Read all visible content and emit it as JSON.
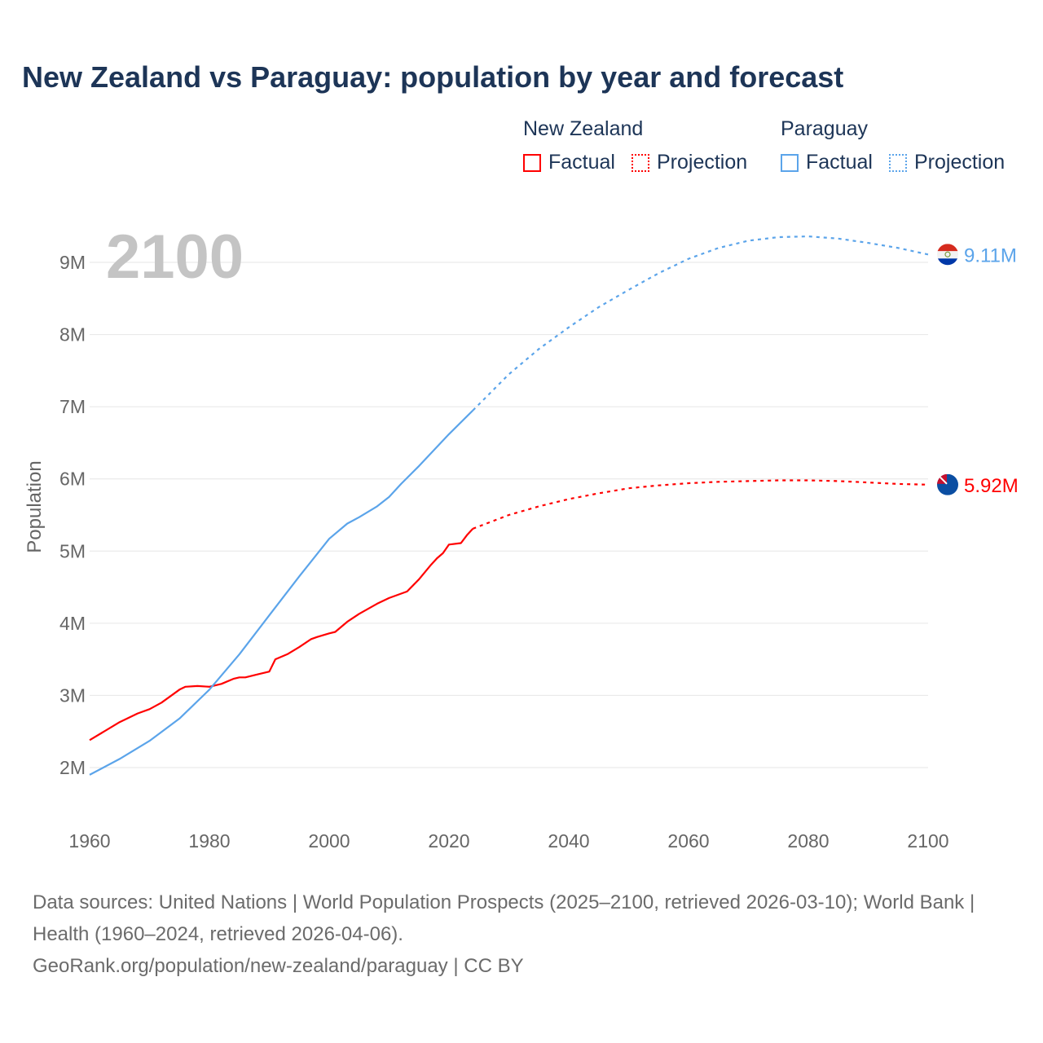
{
  "title": "New Zealand vs Paraguay: population by year and forecast",
  "legend": {
    "groups": [
      {
        "name": "New Zealand",
        "factual": "Factual",
        "projection": "Projection",
        "color": "#ff0000"
      },
      {
        "name": "Paraguay",
        "factual": "Factual",
        "projection": "Projection",
        "color": "#5ba4ea"
      }
    ]
  },
  "year_overlay": "2100",
  "footer": {
    "sources": "Data sources: United Nations | World Population Prospects (2025–2100, retrieved 2026-03-10); World Bank | Health (1960–2024, retrieved 2026-04-06).",
    "link": "GeoRank.org/population/new-zealand/paraguay | CC BY"
  },
  "chart_data": {
    "type": "line",
    "title": "New Zealand vs Paraguay: population by year and forecast",
    "xlabel": "",
    "ylabel": "Population",
    "xlim": [
      1960,
      2100
    ],
    "ylim": [
      1.5,
      9.5
    ],
    "x_ticks": [
      1960,
      1980,
      2000,
      2020,
      2040,
      2060,
      2080,
      2100
    ],
    "y_ticks": [
      2,
      3,
      4,
      5,
      6,
      7,
      8,
      9
    ],
    "y_tick_labels": [
      "2M",
      "3M",
      "4M",
      "5M",
      "6M",
      "7M",
      "8M",
      "9M"
    ],
    "grid": "horizontal",
    "series": [
      {
        "name": "New Zealand",
        "color": "#ff0000",
        "end_label": "5.92M",
        "factual": {
          "x": [
            1960,
            1962,
            1965,
            1968,
            1970,
            1972,
            1974,
            1975,
            1976,
            1978,
            1980,
            1982,
            1984,
            1985,
            1986,
            1988,
            1990,
            1991,
            1993,
            1995,
            1997,
            1998,
            2000,
            2001,
            2003,
            2005,
            2008,
            2010,
            2013,
            2015,
            2017,
            2018,
            2019,
            2020,
            2022,
            2023,
            2024
          ],
          "y": [
            2.38,
            2.48,
            2.63,
            2.75,
            2.81,
            2.9,
            3.02,
            3.08,
            3.12,
            3.13,
            3.12,
            3.16,
            3.23,
            3.25,
            3.25,
            3.29,
            3.33,
            3.5,
            3.57,
            3.67,
            3.78,
            3.81,
            3.86,
            3.88,
            4.02,
            4.13,
            4.27,
            4.35,
            4.44,
            4.61,
            4.81,
            4.9,
            4.97,
            5.09,
            5.11,
            5.22,
            5.31
          ]
        },
        "projection": {
          "x": [
            2024,
            2030,
            2035,
            2040,
            2045,
            2050,
            2055,
            2060,
            2065,
            2070,
            2075,
            2080,
            2085,
            2090,
            2095,
            2100
          ],
          "y": [
            5.31,
            5.5,
            5.62,
            5.72,
            5.8,
            5.87,
            5.91,
            5.94,
            5.96,
            5.97,
            5.98,
            5.98,
            5.97,
            5.95,
            5.93,
            5.92
          ]
        }
      },
      {
        "name": "Paraguay",
        "color": "#5ba4ea",
        "end_label": "9.11M",
        "factual": {
          "x": [
            1960,
            1965,
            1970,
            1975,
            1980,
            1985,
            1990,
            1995,
            2000,
            2003,
            2005,
            2008,
            2010,
            2012,
            2015,
            2020,
            2024
          ],
          "y": [
            1.9,
            2.12,
            2.37,
            2.68,
            3.08,
            3.57,
            4.11,
            4.65,
            5.17,
            5.38,
            5.47,
            5.62,
            5.75,
            5.93,
            6.18,
            6.62,
            6.95
          ]
        },
        "projection": {
          "x": [
            2024,
            2030,
            2035,
            2040,
            2045,
            2050,
            2055,
            2060,
            2065,
            2070,
            2075,
            2080,
            2085,
            2090,
            2095,
            2100
          ],
          "y": [
            6.95,
            7.45,
            7.8,
            8.1,
            8.38,
            8.62,
            8.85,
            9.05,
            9.2,
            9.3,
            9.35,
            9.36,
            9.33,
            9.27,
            9.2,
            9.11
          ]
        }
      }
    ]
  }
}
